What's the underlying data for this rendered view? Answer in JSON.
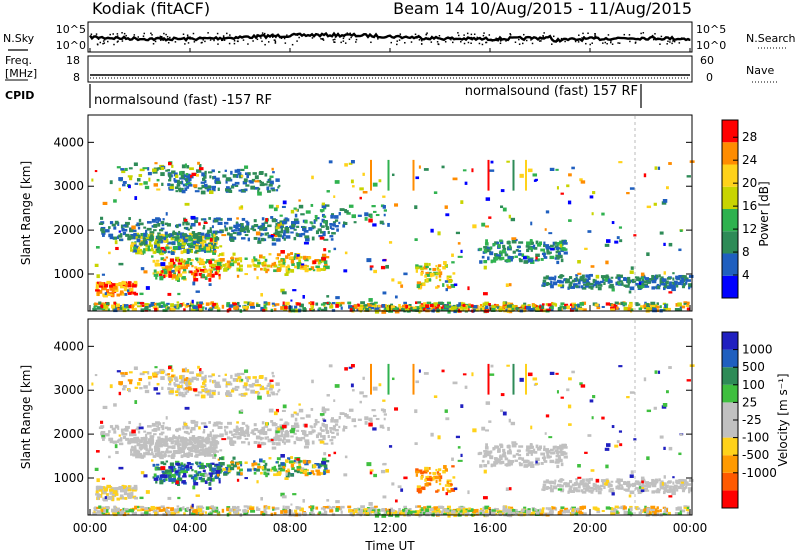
{
  "header": {
    "station": "Kodiak (fitACF)",
    "beam_dates": "Beam 14 10/Aug/2015 - 11/Aug/2015"
  },
  "noise_panel": {
    "left_label": "N.Sky",
    "right_label": "N.Search",
    "left_ticks": [
      "10^5",
      "10^0"
    ],
    "right_ticks": [
      "10^5",
      "10^0"
    ]
  },
  "freq_panel": {
    "left_label_1": "Freq.",
    "left_label_2": "[MHz]",
    "right_label": "Nave",
    "left_ticks": [
      "18",
      "8"
    ],
    "right_ticks": [
      "60",
      "0"
    ]
  },
  "cpid_panel": {
    "label": "CPID",
    "segments": [
      {
        "text": "normalsound (fast) -157 RF",
        "start_hour": 0
      },
      {
        "text": "normalsound (fast) 157 RF",
        "start_hour": 21.8
      }
    ]
  },
  "colors": {
    "power": [
      "#0000ff",
      "#1f5fbf",
      "#2e8b57",
      "#2fb24f",
      "#c8d400",
      "#ffd21a",
      "#ff8c00",
      "#ff0000"
    ],
    "velocity": [
      "#ff0000",
      "#ff5a00",
      "#ff9a00",
      "#ffd21a",
      "#c0c0c0",
      "#c0c0c0",
      "#3fbf3f",
      "#2e8b57",
      "#1f5fbf",
      "#2020c0"
    ]
  },
  "chart_data": [
    {
      "type": "heatmap",
      "name": "power",
      "ylabel": "Slant Range [km]",
      "yticks": [
        "1000",
        "2000",
        "3000",
        "4000"
      ],
      "ylim": [
        180,
        4600
      ],
      "xlim_hours": [
        0,
        24
      ],
      "colorbar_label": "Power [dB]",
      "colorbar_ticks": [
        "4",
        "8",
        "12",
        "16",
        "20",
        "24",
        "28"
      ],
      "colorbar_range": [
        0,
        31
      ]
    },
    {
      "type": "heatmap",
      "name": "velocity",
      "ylabel": "Slant Range [km]",
      "yticks": [
        "1000",
        "2000",
        "3000",
        "4000"
      ],
      "ylim": [
        180,
        4600
      ],
      "xlim_hours": [
        0,
        24
      ],
      "colorbar_label": "Velocity [m s⁻¹]",
      "colorbar_ticks": [
        "1000",
        "500",
        "100",
        "25",
        "-25",
        "-100",
        "-500",
        "-1000"
      ],
      "xlabel": "Time UT",
      "xticks": [
        "00:00",
        "04:00",
        "08:00",
        "12:00",
        "16:00",
        "20:00",
        "00:00"
      ]
    }
  ]
}
